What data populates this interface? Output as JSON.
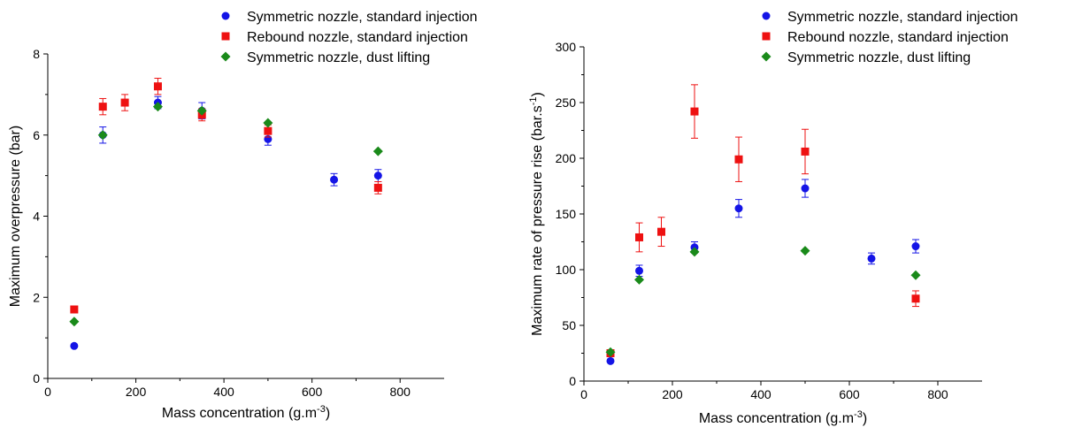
{
  "series_styles": [
    {
      "name": "Symmetric nozzle, standard injection",
      "color": "#1414e6",
      "marker": "circle"
    },
    {
      "name": "Rebound nozzle, standard injection",
      "color": "#ee1111",
      "marker": "square"
    },
    {
      "name": "Symmetric nozzle, dust lifting",
      "color": "#1a8a1a",
      "marker": "diamond"
    }
  ],
  "chart_data": [
    {
      "type": "scatter",
      "xlabel": "Mass concentration (g.m",
      "xlabel_sup": "-3",
      "xlabel_end": ")",
      "ylabel": "Maximum overpressure (bar)",
      "xlim": [
        0,
        900
      ],
      "ylim": [
        0,
        8
      ],
      "xticks": [
        0,
        200,
        400,
        600,
        800
      ],
      "yticks": [
        0,
        2,
        4,
        6,
        8
      ],
      "grid": false,
      "legend_position": "top-right",
      "series": [
        {
          "name": "Symmetric nozzle, standard injection",
          "points": [
            [
              60,
              0.8,
              0
            ],
            [
              125,
              6.0,
              0.2
            ],
            [
              250,
              6.8,
              0.15
            ],
            [
              350,
              6.6,
              0.2
            ],
            [
              500,
              5.9,
              0.15
            ],
            [
              650,
              4.9,
              0.15
            ],
            [
              750,
              5.0,
              0.15
            ]
          ]
        },
        {
          "name": "Rebound nozzle, standard injection",
          "points": [
            [
              60,
              1.7,
              0
            ],
            [
              125,
              6.7,
              0.2
            ],
            [
              175,
              6.8,
              0.2
            ],
            [
              250,
              7.2,
              0.2
            ],
            [
              350,
              6.5,
              0.15
            ],
            [
              500,
              6.1,
              0.15
            ],
            [
              750,
              4.7,
              0.15
            ]
          ]
        },
        {
          "name": "Symmetric nozzle, dust lifting",
          "points": [
            [
              60,
              1.4,
              0
            ],
            [
              125,
              6.0,
              0
            ],
            [
              250,
              6.7,
              0
            ],
            [
              350,
              6.6,
              0
            ],
            [
              500,
              6.3,
              0
            ],
            [
              750,
              5.6,
              0
            ]
          ]
        }
      ]
    },
    {
      "type": "scatter",
      "xlabel": "Mass concentration (g.m",
      "xlabel_sup": "-3",
      "xlabel_end": ")",
      "ylabel": "Maximum rate of pressure rise (bar.s",
      "ylabel_sup": "-1",
      "ylabel_end": ")",
      "xlim": [
        0,
        900
      ],
      "ylim": [
        0,
        300
      ],
      "xticks": [
        0,
        200,
        400,
        600,
        800
      ],
      "yticks": [
        0,
        50,
        100,
        150,
        200,
        250,
        300
      ],
      "grid": false,
      "legend_position": "top-right",
      "series": [
        {
          "name": "Symmetric nozzle, standard injection",
          "points": [
            [
              60,
              18,
              0
            ],
            [
              125,
              99,
              5
            ],
            [
              250,
              120,
              5
            ],
            [
              350,
              155,
              8
            ],
            [
              500,
              173,
              8
            ],
            [
              650,
              110,
              5
            ],
            [
              750,
              121,
              6
            ]
          ]
        },
        {
          "name": "Rebound nozzle, standard injection",
          "points": [
            [
              60,
              25,
              0
            ],
            [
              125,
              129,
              13
            ],
            [
              175,
              134,
              13
            ],
            [
              250,
              242,
              24
            ],
            [
              350,
              199,
              20
            ],
            [
              500,
              206,
              20
            ],
            [
              750,
              74,
              7
            ]
          ]
        },
        {
          "name": "Symmetric nozzle, dust lifting",
          "points": [
            [
              60,
              26,
              0
            ],
            [
              125,
              91,
              0
            ],
            [
              250,
              116,
              0
            ],
            [
              500,
              117,
              0
            ],
            [
              750,
              95,
              0
            ]
          ]
        }
      ]
    }
  ]
}
